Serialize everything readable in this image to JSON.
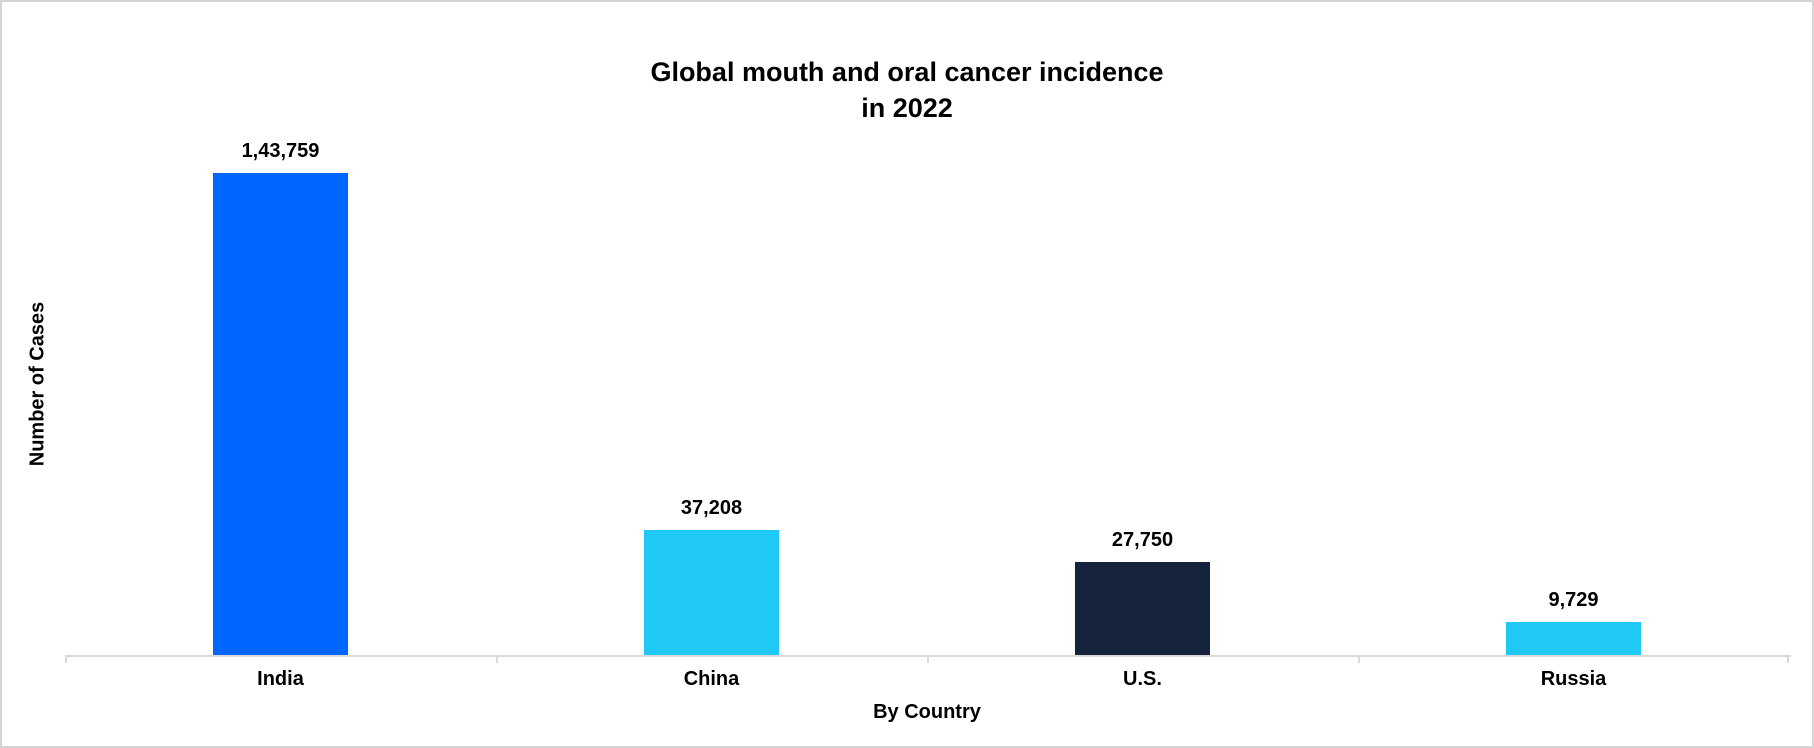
{
  "page": {
    "background_color": "#ffffff",
    "frame_border_color": "#d5d5d5"
  },
  "chart_data": {
    "type": "bar",
    "title": "Global mouth and oral cancer incidence in 2022",
    "title_line1": "Global mouth and oral cancer incidence",
    "title_line2": "in 2022",
    "xlabel": "By Country",
    "ylabel": "Number of Cases",
    "categories": [
      "India",
      "China",
      "U.S.",
      "Russia"
    ],
    "values": [
      143759,
      37208,
      27750,
      9729
    ],
    "value_labels": [
      "1,43,759",
      "37,208",
      "27,750",
      "9,729"
    ],
    "series": [
      {
        "name": "Number of Cases",
        "values": [
          143759,
          37208,
          27750,
          9729
        ]
      }
    ],
    "bar_colors": [
      "#0066ff",
      "#20c8f6",
      "#16233d",
      "#20c8f6"
    ],
    "axis_color": "#d9d9d9",
    "text_color": "#000000",
    "ylim": [
      0,
      150000
    ],
    "grid": false,
    "legend_position": "none",
    "y_axis_tick_labels_visible": false,
    "data_labels_position": "outside-end"
  }
}
